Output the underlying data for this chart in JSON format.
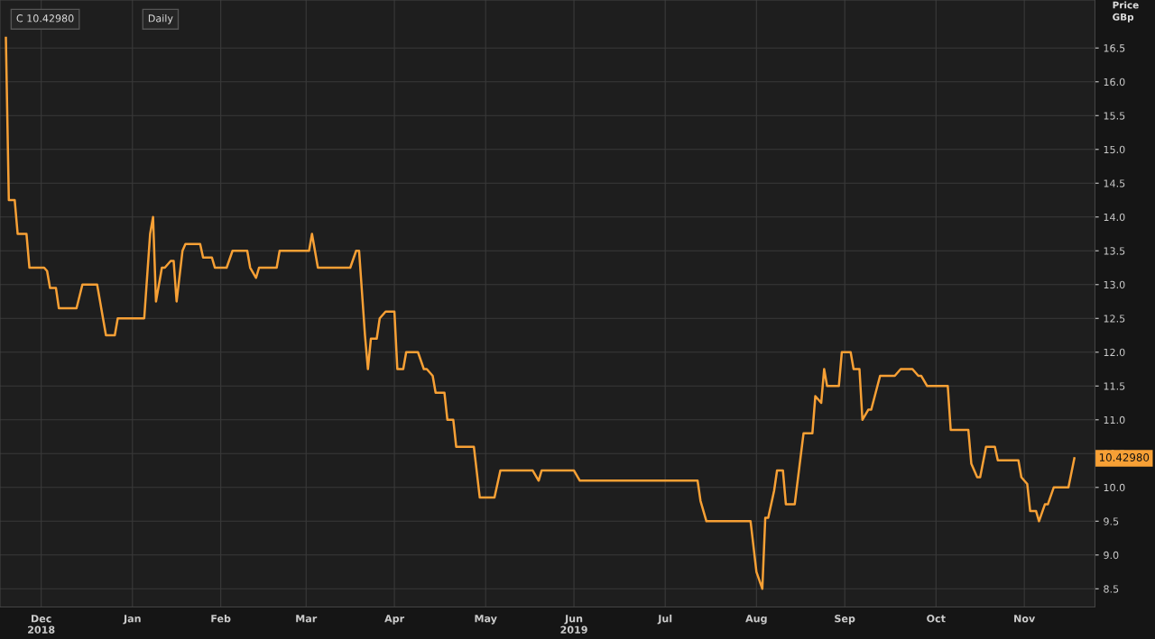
{
  "chart_data": {
    "type": "line",
    "annotations": [
      "C 10.42980",
      "Daily",
      "10.42980"
    ],
    "ylabel": "Price\nGBp",
    "x": [
      "2018-12-04",
      "2018-12-05",
      "2018-12-07",
      "2018-12-08",
      "2018-12-11",
      "2018-12-12",
      "2018-12-17",
      "2018-12-18",
      "2018-12-19",
      "2018-12-21",
      "2018-12-22",
      "2018-12-28",
      "2018-12-30",
      "2019-01-04",
      "2019-01-06",
      "2019-01-07",
      "2019-01-10",
      "2019-01-11",
      "2019-01-20",
      "2019-01-22",
      "2019-01-23",
      "2019-01-24",
      "2019-01-26",
      "2019-01-27",
      "2019-01-29",
      "2019-01-30",
      "2019-01-31",
      "2019-02-02",
      "2019-02-03",
      "2019-02-08",
      "2019-02-09",
      "2019-02-12",
      "2019-02-13",
      "2019-02-17",
      "2019-02-19",
      "2019-02-24",
      "2019-02-25",
      "2019-02-27",
      "2019-02-28",
      "2019-03-06",
      "2019-03-07",
      "2019-03-17",
      "2019-03-18",
      "2019-03-20",
      "2019-03-31",
      "2019-04-02",
      "2019-04-03",
      "2019-04-05",
      "2019-04-06",
      "2019-04-07",
      "2019-04-09",
      "2019-04-10",
      "2019-04-12",
      "2019-04-15",
      "2019-04-16",
      "2019-04-18",
      "2019-04-19",
      "2019-04-23",
      "2019-04-25",
      "2019-04-26",
      "2019-04-28",
      "2019-04-29",
      "2019-05-02",
      "2019-05-03",
      "2019-05-05",
      "2019-05-06",
      "2019-05-12",
      "2019-05-14",
      "2019-05-19",
      "2019-05-21",
      "2019-06-01",
      "2019-06-03",
      "2019-06-04",
      "2019-06-15",
      "2019-06-17",
      "2019-07-27",
      "2019-07-28",
      "2019-07-30",
      "2019-08-14",
      "2019-08-16",
      "2019-08-18",
      "2019-08-19",
      "2019-08-20",
      "2019-08-22",
      "2019-08-23",
      "2019-08-25",
      "2019-08-26",
      "2019-08-29",
      "2019-09-01",
      "2019-09-04",
      "2019-09-05",
      "2019-09-07",
      "2019-09-08",
      "2019-09-09",
      "2019-09-13",
      "2019-09-14",
      "2019-09-17",
      "2019-09-18",
      "2019-09-20",
      "2019-09-21",
      "2019-09-23",
      "2019-09-24",
      "2019-09-27",
      "2019-10-02",
      "2019-10-04",
      "2019-10-08",
      "2019-10-10",
      "2019-10-11",
      "2019-10-13",
      "2019-10-20",
      "2019-10-21",
      "2019-10-27",
      "2019-10-28",
      "2019-10-30",
      "2019-10-31",
      "2019-11-02",
      "2019-11-05",
      "2019-11-06",
      "2019-11-13",
      "2019-11-14",
      "2019-11-16",
      "2019-11-17",
      "2019-11-19",
      "2019-11-20",
      "2019-11-22",
      "2019-11-23",
      "2019-11-25",
      "2019-11-30",
      "2019-12-02"
    ],
    "series": [
      {
        "color": "#f7a035",
        "values": [
          16.65,
          14.25,
          14.25,
          13.75,
          13.75,
          13.25,
          13.25,
          13.2,
          12.95,
          12.95,
          12.65,
          12.65,
          13.0,
          13.0,
          12.5,
          12.25,
          12.25,
          12.5,
          12.5,
          13.75,
          14.0,
          12.75,
          13.25,
          13.25,
          13.35,
          13.35,
          12.75,
          13.5,
          13.6,
          13.6,
          13.4,
          13.4,
          13.25,
          13.25,
          13.5,
          13.5,
          13.25,
          13.1,
          13.25,
          13.25,
          13.5,
          13.5,
          13.75,
          13.25,
          13.25,
          13.5,
          13.5,
          12.25,
          11.75,
          12.2,
          12.2,
          12.5,
          12.6,
          12.6,
          11.75,
          11.75,
          12.0,
          12.0,
          11.75,
          11.75,
          11.65,
          11.4,
          11.4,
          11.0,
          11.0,
          10.6,
          10.6,
          9.85,
          9.85,
          10.25,
          10.25,
          10.1,
          10.25,
          10.25,
          10.1,
          10.1,
          9.8,
          9.5,
          9.5,
          8.75,
          8.5,
          9.55,
          9.55,
          9.95,
          10.25,
          10.25,
          9.75,
          9.75,
          10.8,
          10.8,
          11.35,
          11.25,
          11.75,
          11.5,
          11.5,
          12.0,
          12.0,
          11.75,
          11.75,
          11.0,
          11.15,
          11.15,
          11.65,
          11.65,
          11.75,
          11.75,
          11.65,
          11.65,
          11.5,
          11.5,
          10.85,
          10.85,
          10.35,
          10.15,
          10.15,
          10.6,
          10.6,
          10.4,
          10.4,
          10.15,
          10.05,
          9.65,
          9.65,
          9.5,
          9.75,
          9.75,
          10.0,
          10.0,
          10.43
        ]
      }
    ],
    "xlim": [
      "2018-12-02",
      "2019-12-09"
    ],
    "xticks": [
      {
        "value": "2018-12-16",
        "label": "Dec\n2018"
      },
      {
        "value": "2019-01-16",
        "label": "Jan"
      },
      {
        "value": "2019-02-15",
        "label": "Feb"
      },
      {
        "value": "2019-03-16",
        "label": "Mar"
      },
      {
        "value": "2019-04-15",
        "label": "Apr"
      },
      {
        "value": "2019-05-16",
        "label": "May"
      },
      {
        "value": "2019-06-15",
        "label": "Jun\n2019"
      },
      {
        "value": "2019-07-16",
        "label": "Jul"
      },
      {
        "value": "2019-08-16",
        "label": "Aug"
      },
      {
        "value": "2019-09-15",
        "label": "Sep"
      },
      {
        "value": "2019-10-16",
        "label": "Oct"
      },
      {
        "value": "2019-11-15",
        "label": "Nov"
      }
    ],
    "ylim": [
      8.23,
      17.21
    ],
    "yticks": [
      8.5,
      {
        "value": 9,
        "label": "9.0"
      },
      9.5,
      {
        "value": 10,
        "label": "10.0"
      },
      10.5,
      {
        "value": 11,
        "label": "11.0"
      },
      11.5,
      {
        "value": 12,
        "label": "12.0"
      },
      12.5,
      {
        "value": 13,
        "label": "13.0"
      },
      13.5,
      {
        "value": 14,
        "label": "14.0"
      },
      14.5,
      {
        "value": 15,
        "label": "15.0"
      },
      15.5,
      {
        "value": 16,
        "label": "16.0"
      },
      16.5
    ],
    "grid": true,
    "marker": "none",
    "line_style": "solid"
  }
}
